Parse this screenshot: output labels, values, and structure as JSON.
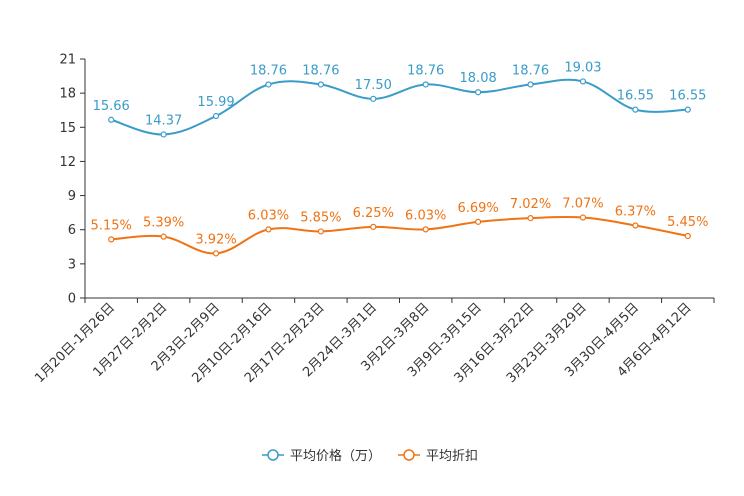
{
  "chart_data": {
    "type": "line",
    "categories": [
      "1月20日-1月26日",
      "1月27日-2月2日",
      "2月3日-2月9日",
      "2月10日-2月16日",
      "2月17日-2月23日",
      "2月24日-3月1日",
      "3月2日-3月8日",
      "3月9日-3月15日",
      "3月16日-3月22日",
      "3月23日-3月29日",
      "3月30日-4月5日",
      "4月6日-4月12日"
    ],
    "series": [
      {
        "name": "平均价格（万）",
        "color": "#3a9cc9",
        "values": [
          15.66,
          14.37,
          15.99,
          18.76,
          18.76,
          17.5,
          18.76,
          18.08,
          18.76,
          19.03,
          16.55,
          16.55
        ],
        "labels": [
          "15.66",
          "14.37",
          "15.99",
          "18.76",
          "18.76",
          "17.50",
          "18.76",
          "18.08",
          "18.76",
          "19.03",
          "16.55",
          "16.55"
        ]
      },
      {
        "name": "平均折扣",
        "color": "#f07314",
        "values": [
          5.15,
          5.39,
          3.92,
          6.03,
          5.85,
          6.25,
          6.03,
          6.69,
          7.02,
          7.07,
          6.37,
          5.45
        ],
        "labels": [
          "5.15%",
          "5.39%",
          "3.92%",
          "6.03%",
          "5.85%",
          "6.25%",
          "6.03%",
          "6.69%",
          "7.02%",
          "7.07%",
          "6.37%",
          "5.45%"
        ]
      }
    ],
    "y_ticks": [
      "0",
      "3",
      "6",
      "9",
      "12",
      "15",
      "18",
      "21"
    ],
    "ylim": [
      0,
      21
    ],
    "grid": false,
    "legend_position": "bottom-center"
  }
}
